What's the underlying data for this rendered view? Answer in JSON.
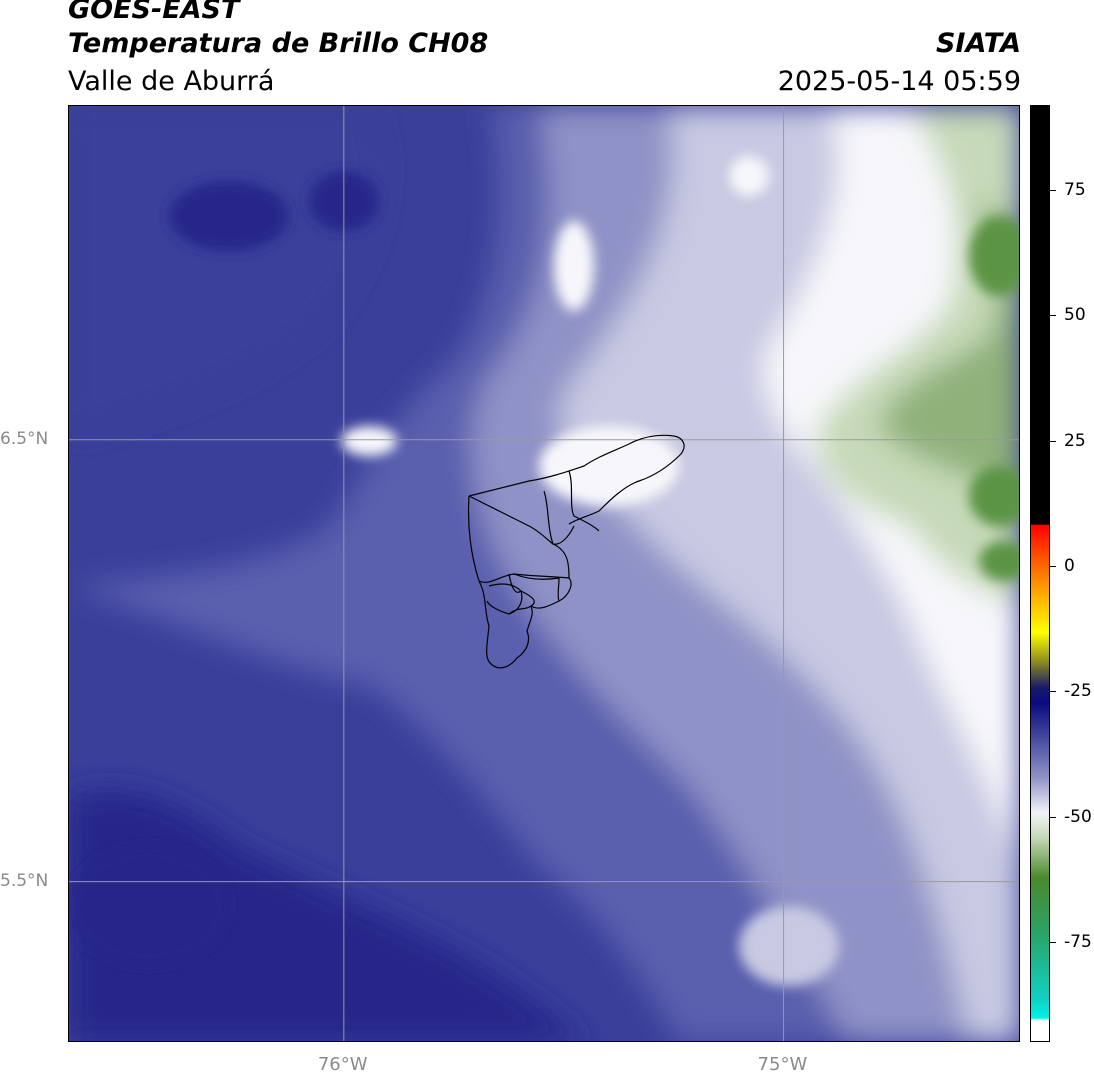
{
  "header": {
    "title": "GOES-EAST",
    "subtitle": "Temperatura de Brillo CH08",
    "organization": "SIATA",
    "region": "Valle de Aburrá",
    "timestamp": "2025-05-14 05:59"
  },
  "map": {
    "latitude_labels": [
      {
        "value": 6.5,
        "label": "6.5°N"
      },
      {
        "value": 5.5,
        "label": "5.5°N"
      }
    ],
    "longitude_labels": [
      {
        "value": -76,
        "label": "76°W"
      },
      {
        "value": -75,
        "label": "75°W"
      }
    ],
    "gridline_color": "#9a9a9a",
    "palette": {
      "deep": "#27288a",
      "dark": "#3a3f9a",
      "mid": "#5a5fae",
      "light": "#8f92c6",
      "pale": "#c8c9e2",
      "white": "#f7f7fb",
      "green_light": "#c6d9b8",
      "green": "#8fb17a",
      "green_dark": "#5c9444"
    }
  },
  "colorbar": {
    "ticks": [
      {
        "value": 75,
        "label": "75"
      },
      {
        "value": 50,
        "label": "50"
      },
      {
        "value": 25,
        "label": "25"
      },
      {
        "value": 0,
        "label": "0"
      },
      {
        "value": -25,
        "label": "-25"
      },
      {
        "value": -50,
        "label": "-50"
      },
      {
        "value": -75,
        "label": "-75"
      }
    ],
    "min": -95,
    "max": 92,
    "stops": [
      {
        "value": 92,
        "color": "#000000"
      },
      {
        "value": 8.5,
        "color": "#000000"
      },
      {
        "value": 8.4,
        "color": "#ff0000"
      },
      {
        "value": 0,
        "color": "#ff6a00"
      },
      {
        "value": -8,
        "color": "#ffc800"
      },
      {
        "value": -13,
        "color": "#ffff00"
      },
      {
        "value": -19,
        "color": "#8a8a20"
      },
      {
        "value": -24,
        "color": "#1a1a6a"
      },
      {
        "value": -27,
        "color": "#0a0a80"
      },
      {
        "value": -33,
        "color": "#3a3f9a"
      },
      {
        "value": -42,
        "color": "#8f92c6"
      },
      {
        "value": -49,
        "color": "#f2f2f8"
      },
      {
        "value": -54,
        "color": "#c6d9b8"
      },
      {
        "value": -62,
        "color": "#4a8a2a"
      },
      {
        "value": -72,
        "color": "#2ea060"
      },
      {
        "value": -86,
        "color": "#10d0c0"
      },
      {
        "value": -90,
        "color": "#00f0e8"
      },
      {
        "value": -90.5,
        "color": "#ffffff"
      },
      {
        "value": -95,
        "color": "#ffffff"
      }
    ]
  }
}
